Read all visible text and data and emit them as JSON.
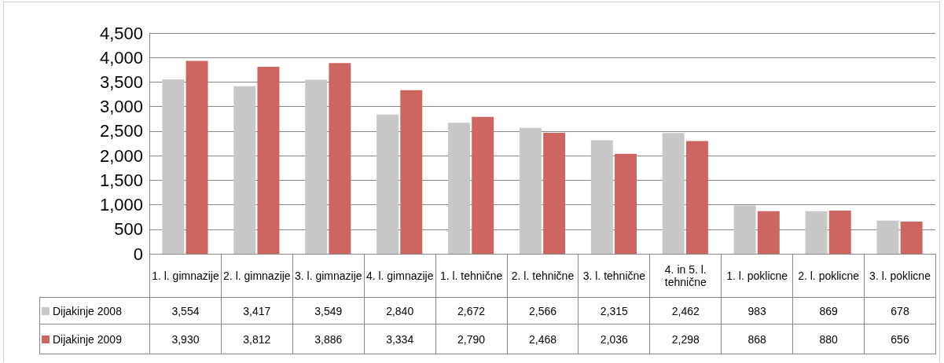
{
  "chart_data": {
    "type": "bar",
    "categories": [
      "1. l. gimnazije",
      "2. l. gimnazije",
      "3. l. gimnazije",
      "4. l. gimnazije",
      "1. l. tehnične",
      "2. l. tehnične",
      "3. l. tehnične",
      "4. in 5.  l. tehnične",
      "1. l. poklicne",
      "2. l. poklicne",
      "3. l. poklicne"
    ],
    "series": [
      {
        "name": "Dijakinje 2008",
        "color": "#c8c8c8",
        "values": [
          3554,
          3417,
          3549,
          2840,
          2672,
          2566,
          2315,
          2462,
          983,
          869,
          678
        ],
        "value_labels": [
          "3,554",
          "3,417",
          "3,549",
          "2,840",
          "2,672",
          "2,566",
          "2,315",
          "2,462",
          "983",
          "869",
          "678"
        ]
      },
      {
        "name": "Dijakinje 2009",
        "color": "#cd6660",
        "values": [
          3930,
          3812,
          3886,
          3334,
          2790,
          2468,
          2036,
          2298,
          868,
          880,
          656
        ],
        "value_labels": [
          "3,930",
          "3,812",
          "3,886",
          "3,334",
          "2,790",
          "2,468",
          "2,036",
          "2,298",
          "868",
          "880",
          "656"
        ]
      }
    ],
    "ylim": [
      0,
      4500
    ],
    "yticks": [
      0,
      500,
      {
        "value": 1000,
        "label": "1,000"
      },
      {
        "value": 1500,
        "label": "1,500"
      },
      {
        "value": 2000,
        "label": "2,000"
      },
      {
        "value": 2500,
        "label": "2,500"
      },
      {
        "value": 3000,
        "label": "3,000"
      },
      {
        "value": 3500,
        "label": "3,500"
      },
      {
        "value": 4000,
        "label": "4,000"
      },
      {
        "value": 4500,
        "label": "4,500"
      }
    ],
    "grid": "y",
    "legend": "bottom"
  }
}
